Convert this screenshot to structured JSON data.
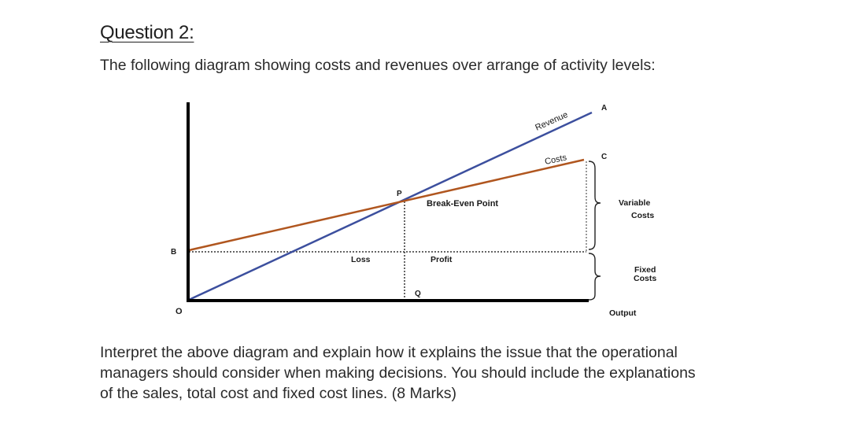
{
  "heading": "Question 2:",
  "intro": "The following diagram showing costs and revenues over arrange of activity levels:",
  "diagram": {
    "labels": {
      "origin": "O",
      "b": "B",
      "p": "P",
      "q": "Q",
      "a": "A",
      "c": "C",
      "revenue": "Revenue",
      "costs": "Costs",
      "break_even": "Break-Even Point",
      "loss": "Loss",
      "profit": "Profit",
      "variable_1": "Variable",
      "variable_2": "Costs",
      "fixed_1": "Fixed",
      "fixed_2": "Costs",
      "output": "Output"
    },
    "colors": {
      "revenue_line": "#3c4f9e",
      "cost_line": "#b0561f",
      "axis": "#000000"
    }
  },
  "question_lines": [
    "Interpret the above diagram and explain how it explains the issue that the operational",
    "managers should consider when making decisions. You should include the explanations",
    "of the sales, total cost and fixed cost lines. (8 Marks)"
  ]
}
